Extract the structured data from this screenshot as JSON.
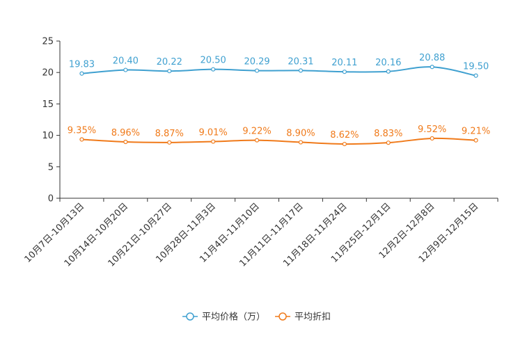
{
  "chart_data": {
    "type": "line",
    "categories": [
      "10月7日-10月13日",
      "10月14日-10月20日",
      "10月21日-10月27日",
      "10月28日-11月3日",
      "11月4日-11月10日",
      "11月11日-11月17日",
      "11月18日-11月24日",
      "11月25日-12月1日",
      "12月2日-12月8日",
      "12月9日-12月15日"
    ],
    "series": [
      {
        "name": "平均价格（万）",
        "color": "#3fa0d0",
        "values": [
          19.83,
          20.4,
          20.22,
          20.5,
          20.29,
          20.31,
          20.11,
          20.16,
          20.88,
          19.5
        ],
        "labels": [
          "19.83",
          "20.40",
          "20.22",
          "20.50",
          "20.29",
          "20.31",
          "20.11",
          "20.16",
          "20.88",
          "19.50"
        ]
      },
      {
        "name": "平均折扣",
        "color": "#f07a1a",
        "values": [
          9.35,
          8.96,
          8.87,
          9.01,
          9.22,
          8.9,
          8.62,
          8.83,
          9.52,
          9.21
        ],
        "labels": [
          "9.35%",
          "8.96%",
          "8.87%",
          "9.01%",
          "9.22%",
          "8.90%",
          "8.62%",
          "8.83%",
          "9.52%",
          "9.21%"
        ]
      }
    ],
    "ylim": [
      0,
      25
    ],
    "yticks": [
      0,
      5,
      10,
      15,
      20,
      25
    ],
    "title": "",
    "xlabel": "",
    "ylabel": "",
    "legend": "bottom-center"
  }
}
